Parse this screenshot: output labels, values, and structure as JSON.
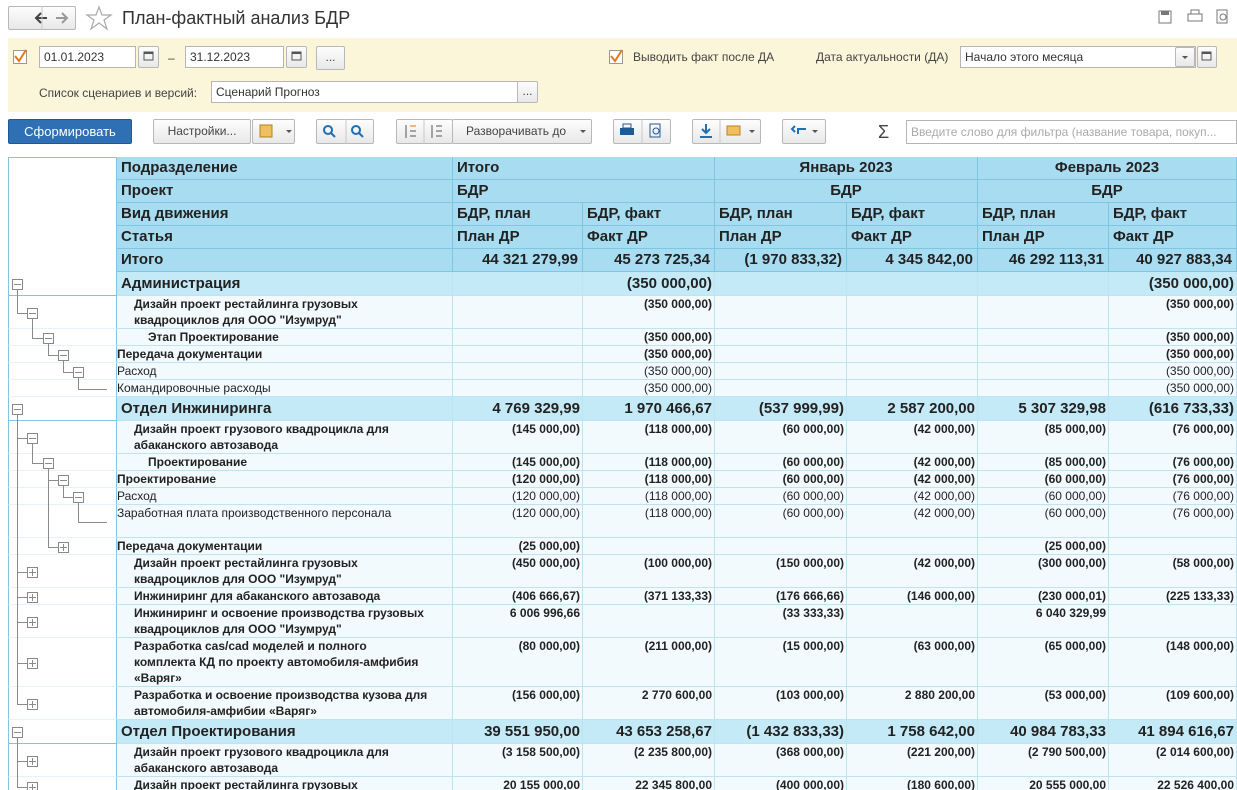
{
  "header": {
    "title": "План-фактный анализ БДР"
  },
  "filters": {
    "date_from": "01.01.2023",
    "date_separator": "–",
    "date_to": "31.12.2023",
    "more_button": "...",
    "fact_after_label": "Выводить факт после ДА",
    "actuality_label": "Дата актуальности (ДА)",
    "actuality_value": "Начало этого месяца",
    "scenarios_label": "Список сценариев и версий:",
    "scenarios_value": "Сценарий Прогноз"
  },
  "toolbar": {
    "generate": "Сформировать",
    "settings": "Настройки...",
    "expand_to": "Разворачивать до",
    "sum_symbol": "Σ",
    "filter_placeholder": "Введите слово для фильтра (название товара, покуп..."
  },
  "table": {
    "header_rows": [
      {
        "label": "Подразделение",
        "groups": [
          "Итого",
          "Январь 2023",
          "Февраль 2023"
        ]
      },
      {
        "label": "Проект",
        "groups": [
          "БДР",
          "БДР",
          "БДР"
        ]
      },
      {
        "label": "Вид движения",
        "cells": [
          "БДР, план",
          "БДР, факт",
          "БДР, план",
          "БДР, факт",
          "БДР, план",
          "БДР, факт"
        ]
      },
      {
        "label": "Статья",
        "cells": [
          "План ДР",
          "Факт ДР",
          "План ДР",
          "Факт ДР",
          "План ДР",
          "Факт ДР"
        ]
      }
    ],
    "total": {
      "label": "Итого",
      "values": [
        "44 321 279,99",
        "45 273 725,34",
        "(1 970 833,32)",
        "4 345 842,00",
        "46 292 113,31",
        "40 927 883,34"
      ]
    },
    "rows": [
      {
        "level": 0,
        "label": "Администрация",
        "values": [
          null,
          "(350 000,00)",
          null,
          null,
          null,
          "(350 000,00)"
        ]
      },
      {
        "level": 1,
        "label": "Дизайн проект рестайлинга грузовых квадроциклов для ООО \"Изумруд\"",
        "values": [
          null,
          "(350 000,00)",
          null,
          null,
          null,
          "(350 000,00)"
        ]
      },
      {
        "level": 2,
        "label": "Этап Проектирование",
        "values": [
          null,
          "(350 000,00)",
          null,
          null,
          null,
          "(350 000,00)"
        ]
      },
      {
        "level": 3,
        "label": "Передача документации",
        "values": [
          null,
          "(350 000,00)",
          null,
          null,
          null,
          "(350 000,00)"
        ]
      },
      {
        "level": 4,
        "label": "Расход",
        "values": [
          null,
          "(350 000,00)",
          null,
          null,
          null,
          "(350 000,00)"
        ]
      },
      {
        "level": 5,
        "label": "Командировочные расходы",
        "values": [
          null,
          "(350 000,00)",
          null,
          null,
          null,
          "(350 000,00)"
        ]
      },
      {
        "level": 0,
        "label": "Отдел Инжиниринга",
        "values": [
          "4 769 329,99",
          "1 970 466,67",
          "(537 999,99)",
          "2 587 200,00",
          "5 307 329,98",
          "(616 733,33)"
        ]
      },
      {
        "level": 1,
        "label": "Дизайн проект грузового квадроцикла для абаканского автозавода",
        "values": [
          "(145 000,00)",
          "(118 000,00)",
          "(60 000,00)",
          "(42 000,00)",
          "(85 000,00)",
          "(76 000,00)"
        ]
      },
      {
        "level": 2,
        "label": "Проектирование",
        "values": [
          "(145 000,00)",
          "(118 000,00)",
          "(60 000,00)",
          "(42 000,00)",
          "(85 000,00)",
          "(76 000,00)"
        ]
      },
      {
        "level": 3,
        "label": "Проектирование",
        "values": [
          "(120 000,00)",
          "(118 000,00)",
          "(60 000,00)",
          "(42 000,00)",
          "(60 000,00)",
          "(76 000,00)"
        ]
      },
      {
        "level": 4,
        "label": "Расход",
        "values": [
          "(120 000,00)",
          "(118 000,00)",
          "(60 000,00)",
          "(42 000,00)",
          "(60 000,00)",
          "(76 000,00)"
        ]
      },
      {
        "level": 5,
        "label": "Заработная плата производственного персонала",
        "values": [
          "(120 000,00)",
          "(118 000,00)",
          "(60 000,00)",
          "(42 000,00)",
          "(60 000,00)",
          "(76 000,00)"
        ]
      },
      {
        "level": 3,
        "label": "Передача документации",
        "values": [
          "(25 000,00)",
          null,
          null,
          null,
          "(25 000,00)",
          null
        ]
      },
      {
        "level": 1,
        "label": "Дизайн проект рестайлинга грузовых квадроциклов для ООО \"Изумруд\"",
        "values": [
          "(450 000,00)",
          "(100 000,00)",
          "(150 000,00)",
          "(42 000,00)",
          "(300 000,00)",
          "(58 000,00)"
        ]
      },
      {
        "level": 1,
        "label": "Инжиниринг для абаканского автозавода",
        "values": [
          "(406 666,67)",
          "(371 133,33)",
          "(176 666,66)",
          "(146 000,00)",
          "(230 000,01)",
          "(225 133,33)"
        ]
      },
      {
        "level": 1,
        "label": "Инжиниринг и освоение производства грузовых квадроциклов для ООО \"Изумруд\"",
        "values": [
          "6 006 996,66",
          null,
          "(33 333,33)",
          null,
          "6 040 329,99",
          null
        ]
      },
      {
        "level": 1,
        "label": "Разработка cas/cad моделей и полного комплекта КД по проекту автомобиля-амфибия «Варяг»",
        "values": [
          "(80 000,00)",
          "(211 000,00)",
          "(15 000,00)",
          "(63 000,00)",
          "(65 000,00)",
          "(148 000,00)"
        ]
      },
      {
        "level": 1,
        "label": "Разработка и освоение производства кузова для автомобиля-амфибии «Варяг»",
        "values": [
          "(156 000,00)",
          "2 770 600,00",
          "(103 000,00)",
          "2 880 200,00",
          "(53 000,00)",
          "(109 600,00)"
        ]
      },
      {
        "level": 0,
        "label": "Отдел Проектирования",
        "values": [
          "39 551 950,00",
          "43 653 258,67",
          "(1 432 833,33)",
          "1 758 642,00",
          "40 984 783,33",
          "41 894 616,67"
        ]
      },
      {
        "level": 1,
        "label": "Дизайн проект грузового квадроцикла для абаканского автозавода",
        "values": [
          "(3 158 500,00)",
          "(2 235 800,00)",
          "(368 000,00)",
          "(221 200,00)",
          "(2 790 500,00)",
          "(2 014 600,00)"
        ]
      },
      {
        "level": 1,
        "label": "Дизайн проект рестайлинга грузовых квадроциклов для ООО \"Изумруд\"",
        "values": [
          "20 155 000,00",
          "22 345 800,00",
          "(400 000,00)",
          "(180 600,00)",
          "20 555 000,00",
          "22 526 400,00"
        ]
      }
    ]
  }
}
